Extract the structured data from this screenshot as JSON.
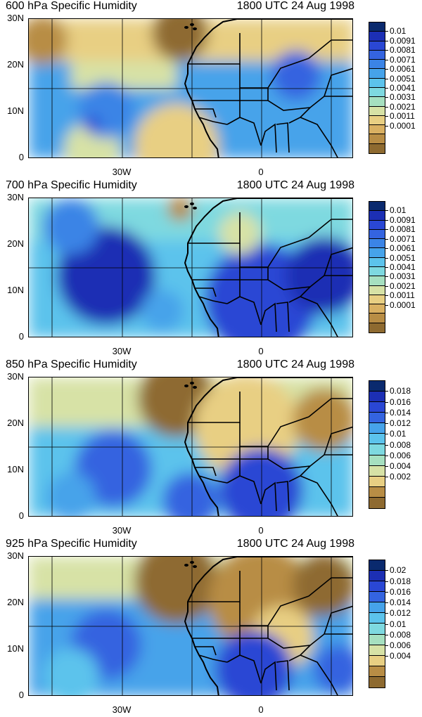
{
  "panels": [
    {
      "title": "600 hPa Specific Humidity",
      "time": "1800 UTC 24 Aug 1998",
      "lat_labels": [
        "30N",
        "20N",
        "10N",
        "0"
      ],
      "lon_labels": [
        "30W",
        "0"
      ],
      "colorbar_labels": [
        "0.01",
        "0.0091",
        "0.0081",
        "0.0071",
        "0.0061",
        "0.0051",
        "0.0041",
        "0.0031",
        "0.0021",
        "0.0011",
        "0.0001"
      ],
      "colorbar_colors": [
        "#0a2a6e",
        "#1c2fb4",
        "#2a47d4",
        "#3464e0",
        "#3b84e6",
        "#46a3ea",
        "#5cc3ec",
        "#7ed9e0",
        "#a6e0c0",
        "#d7e2a6",
        "#e8cf83",
        "#d9b062",
        "#b88d45",
        "#8e6a30"
      ]
    },
    {
      "title": "700 hPa Specific Humidity",
      "time": "1800 UTC 24 Aug 1998",
      "lat_labels": [
        "30N",
        "20N",
        "10N",
        "0"
      ],
      "lon_labels": [
        "30W",
        "0"
      ],
      "colorbar_labels": [
        "0.01",
        "0.0091",
        "0.0081",
        "0.0071",
        "0.0061",
        "0.0051",
        "0.0041",
        "0.0031",
        "0.0021",
        "0.0011",
        "0.0001"
      ],
      "colorbar_colors": [
        "#0a2a6e",
        "#1c2fb4",
        "#2a47d4",
        "#3464e0",
        "#3b84e6",
        "#46a3ea",
        "#5cc3ec",
        "#7ed9e0",
        "#a6e0c0",
        "#d7e2a6",
        "#e8cf83",
        "#d9b062",
        "#b88d45",
        "#8e6a30"
      ]
    },
    {
      "title": "850 hPa Specific Humidity",
      "time": "1800 UTC 24 Aug 1998",
      "lat_labels": [
        "30N",
        "20N",
        "10N",
        "0"
      ],
      "lon_labels": [
        "30W",
        "0"
      ],
      "colorbar_labels": [
        "0.018",
        "0.016",
        "0.014",
        "0.012",
        "0.01",
        "0.008",
        "0.006",
        "0.004",
        "0.002"
      ],
      "colorbar_colors": [
        "#0a2a6e",
        "#1c2fb4",
        "#2a47d4",
        "#3464e0",
        "#46a3ea",
        "#5cc3ec",
        "#7ed9e0",
        "#a6e0c0",
        "#d7e2a6",
        "#e8cf83",
        "#b88d45",
        "#8e6a30"
      ]
    },
    {
      "title": "925 hPa Specific Humidity",
      "time": "1800 UTC 24 Aug 1998",
      "lat_labels": [
        "30N",
        "20N",
        "10N",
        "0"
      ],
      "lon_labels": [
        "30W",
        "0"
      ],
      "colorbar_labels": [
        "0.02",
        "0.018",
        "0.016",
        "0.014",
        "0.012",
        "0.01",
        "0.008",
        "0.006",
        "0.004"
      ],
      "colorbar_colors": [
        "#0a2a6e",
        "#1c2fb4",
        "#2a47d4",
        "#3464e0",
        "#46a3ea",
        "#5cc3ec",
        "#7ed9e0",
        "#a6e0c0",
        "#d7e2a6",
        "#e8cf83",
        "#b88d45",
        "#8e6a30"
      ]
    }
  ]
}
